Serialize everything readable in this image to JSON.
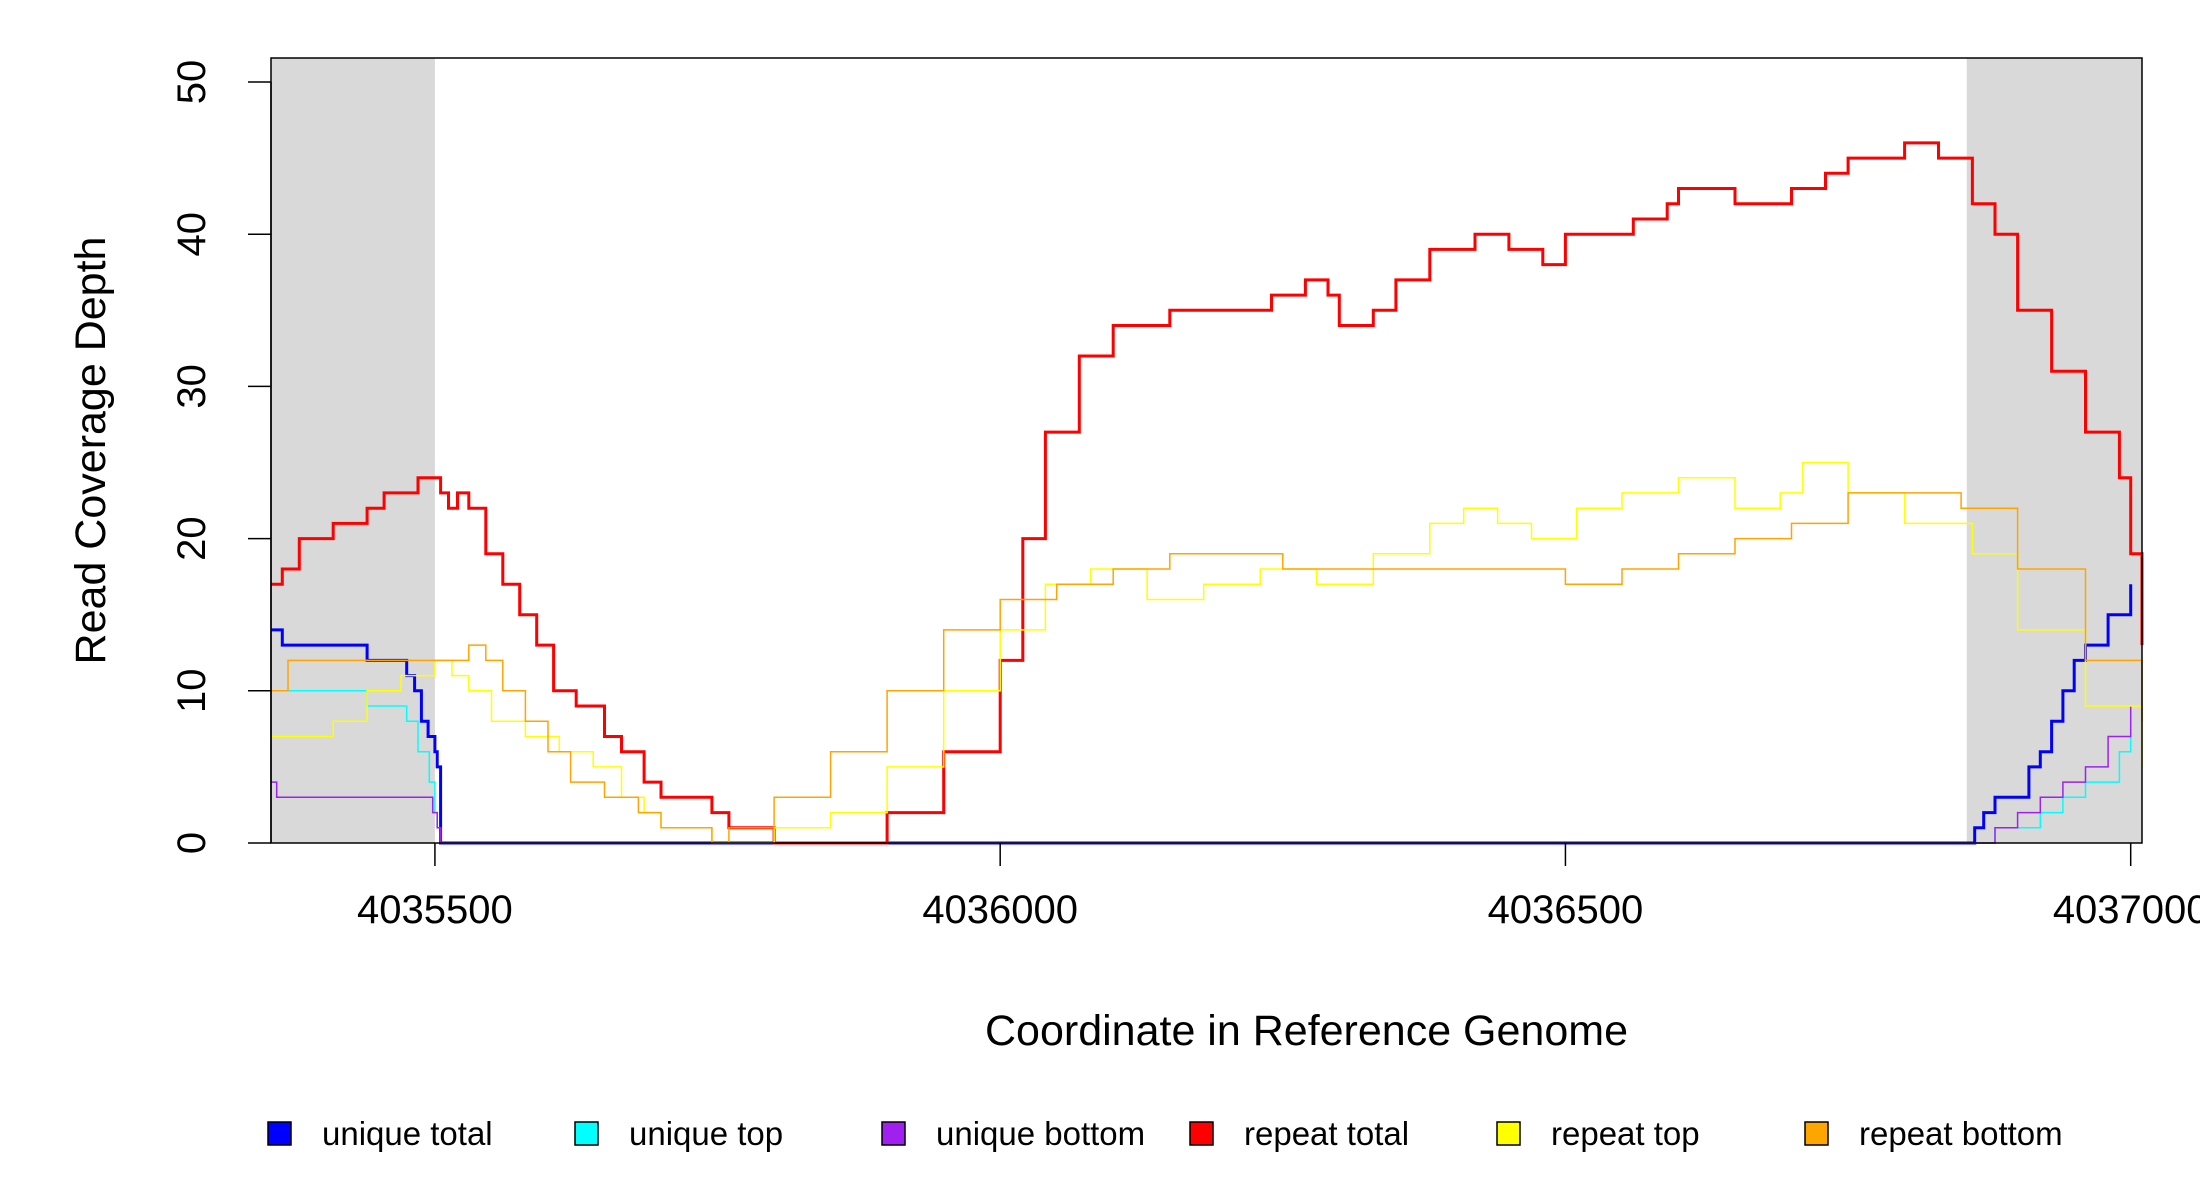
{
  "chart_data": {
    "type": "line",
    "title": "",
    "xlabel": "Coordinate in Reference Genome",
    "ylabel": "Read Coverage Depth",
    "xlim": [
      4035355,
      4037010
    ],
    "ylim": [
      0,
      50
    ],
    "x_ticks": [
      4035500,
      4036000,
      4036500,
      4037000
    ],
    "x_tick_labels": [
      "4035500",
      "4036000",
      "4036500",
      "4037000"
    ],
    "y_ticks": [
      0,
      10,
      20,
      30,
      40,
      50
    ],
    "y_tick_labels": [
      "0",
      "10",
      "20",
      "30",
      "40",
      "50"
    ],
    "grid": false,
    "legend_position": "bottom",
    "shaded_regions": [
      [
        4035355,
        4035500
      ],
      [
        4036855,
        4037010
      ]
    ],
    "series": [
      {
        "name": "unique total",
        "color": "#0000FF",
        "linewidth": 3,
        "x": [
          4035355,
          4035365,
          4035420,
          4035440,
          4035475,
          4035482,
          4035488,
          4035494,
          4035500,
          4035502,
          4035505,
          4036856,
          4036862,
          4036870,
          4036880,
          4036890,
          4036910,
          4036920,
          4036930,
          4036940,
          4036950,
          4036960,
          4036980,
          4037000
        ],
        "y": [
          14,
          13,
          13,
          12,
          11,
          10,
          8,
          7,
          6,
          5,
          0,
          0,
          1,
          2,
          3,
          3,
          5,
          6,
          8,
          10,
          12,
          13,
          15,
          17
        ]
      },
      {
        "name": "unique top",
        "color": "#00FFFF",
        "linewidth": 1.5,
        "x": [
          4035355,
          4035420,
          4035440,
          4035475,
          4035485,
          4035495,
          4035500,
          4035502,
          4035505,
          4036860,
          4036880,
          4036900,
          4036920,
          4036940,
          4036960,
          4036990,
          4037000
        ],
        "y": [
          10,
          10,
          9,
          8,
          6,
          4,
          2,
          1,
          0,
          0,
          1,
          1,
          2,
          3,
          4,
          6,
          7
        ]
      },
      {
        "name": "unique bottom",
        "color": "#A020F0",
        "linewidth": 1.5,
        "x": [
          4035355,
          4035360,
          4035490,
          4035498,
          4035502,
          4035505,
          4036860,
          4036880,
          4036900,
          4036920,
          4036940,
          4036960,
          4036980,
          4037000
        ],
        "y": [
          4,
          3,
          3,
          2,
          1,
          0,
          0,
          1,
          2,
          3,
          4,
          5,
          7,
          9
        ]
      },
      {
        "name": "repeat total",
        "color": "#FF0000",
        "linewidth": 3,
        "x": [
          4035355,
          4035365,
          4035380,
          4035395,
          4035410,
          4035425,
          4035440,
          4035455,
          4035470,
          4035485,
          4035500,
          4035505,
          4035512,
          4035520,
          4035530,
          4035545,
          4035560,
          4035575,
          4035590,
          4035605,
          4035625,
          4035650,
          4035665,
          4035685,
          4035700,
          4035745,
          4035760,
          4035800,
          4035850,
          4035900,
          4035950,
          4036000,
          4036020,
          4036040,
          4036070,
          4036100,
          4036150,
          4036200,
          4036240,
          4036270,
          4036290,
          4036300,
          4036330,
          4036350,
          4036380,
          4036420,
          4036450,
          4036480,
          4036500,
          4036530,
          4036560,
          4036590,
          4036600,
          4036650,
          4036700,
          4036730,
          4036750,
          4036800,
          4036830,
          4036860,
          4036880,
          4036900,
          4036930,
          4036960,
          4036990,
          4037000,
          4037010
        ],
        "y": [
          17,
          18,
          20,
          20,
          21,
          21,
          22,
          23,
          23,
          24,
          24,
          23,
          22,
          23,
          22,
          19,
          17,
          15,
          13,
          10,
          9,
          7,
          6,
          4,
          3,
          2,
          1,
          0,
          0,
          2,
          6,
          12,
          20,
          27,
          32,
          34,
          35,
          35,
          36,
          37,
          36,
          34,
          35,
          37,
          39,
          40,
          39,
          38,
          40,
          40,
          41,
          42,
          43,
          42,
          43,
          44,
          45,
          46,
          45,
          42,
          40,
          35,
          31,
          27,
          24,
          19,
          13
        ]
      },
      {
        "name": "repeat top",
        "color": "#FFFF00",
        "linewidth": 1.5,
        "x": [
          4035355,
          4035380,
          4035410,
          4035440,
          4035470,
          4035500,
          4035515,
          4035530,
          4035550,
          4035580,
          4035610,
          4035640,
          4035665,
          4035685,
          4035700,
          4035745,
          4035760,
          4035800,
          4035850,
          4035900,
          4035950,
          4036000,
          4036040,
          4036080,
          4036130,
          4036180,
          4036230,
          4036280,
          4036330,
          4036380,
          4036410,
          4036440,
          4036470,
          4036510,
          4036550,
          4036600,
          4036650,
          4036690,
          4036710,
          4036750,
          4036800,
          4036860,
          4036900,
          4036960,
          4037010
        ],
        "y": [
          7,
          7,
          8,
          10,
          11,
          12,
          11,
          10,
          8,
          7,
          6,
          5,
          3,
          2,
          1,
          0,
          0,
          1,
          2,
          5,
          10,
          14,
          17,
          18,
          16,
          17,
          18,
          17,
          19,
          21,
          22,
          21,
          20,
          22,
          23,
          24,
          22,
          23,
          25,
          23,
          21,
          19,
          14,
          9,
          5
        ]
      },
      {
        "name": "repeat bottom",
        "color": "#FFA500",
        "linewidth": 1.5,
        "x": [
          4035355,
          4035370,
          4035400,
          4035440,
          4035470,
          4035500,
          4035515,
          4035530,
          4035545,
          4035560,
          4035580,
          4035600,
          4035620,
          4035650,
          4035680,
          4035700,
          4035745,
          4035760,
          4035800,
          4035850,
          4035900,
          4035950,
          4036000,
          4036050,
          4036100,
          4036150,
          4036200,
          4036250,
          4036300,
          4036350,
          4036400,
          4036450,
          4036500,
          4036550,
          4036600,
          4036650,
          4036700,
          4036750,
          4036800,
          4036850,
          4036900,
          4036960,
          4037010
        ],
        "y": [
          10,
          12,
          12,
          12,
          12,
          12,
          12,
          13,
          12,
          10,
          8,
          6,
          4,
          3,
          2,
          1,
          0,
          1,
          3,
          6,
          10,
          14,
          16,
          17,
          18,
          19,
          19,
          18,
          18,
          18,
          18,
          18,
          17,
          18,
          19,
          20,
          21,
          23,
          23,
          22,
          18,
          12,
          8
        ]
      }
    ]
  }
}
